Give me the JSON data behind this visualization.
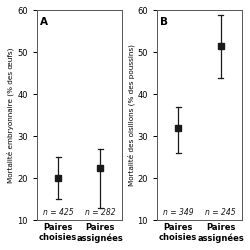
{
  "panel_A": {
    "label": "A",
    "ylabel": "Mortalité embryonnaire (% des œufs)",
    "ylim": [
      10,
      60
    ],
    "yticks": [
      10,
      20,
      30,
      40,
      50,
      60
    ],
    "groups": [
      "Paires\nchoisies",
      "Paires\nassignées"
    ],
    "means": [
      20,
      22.5
    ],
    "ci_low": [
      15,
      13
    ],
    "ci_high": [
      25,
      27
    ],
    "n_labels": [
      "n = 425",
      "n = 282"
    ],
    "x_positions": [
      1,
      2
    ]
  },
  "panel_B": {
    "label": "B",
    "ylabel": "Mortalité des oisillons (% des poussins)",
    "ylim": [
      10,
      60
    ],
    "yticks": [
      10,
      20,
      30,
      40,
      50,
      60
    ],
    "groups": [
      "Paires\nchoisies",
      "Paires\nassignées"
    ],
    "means": [
      32,
      51.5
    ],
    "ci_low": [
      26,
      44
    ],
    "ci_high": [
      37,
      59
    ],
    "n_labels": [
      "n = 349",
      "n = 245"
    ],
    "x_positions": [
      1,
      2
    ]
  },
  "dot_color": "#1a1a1a",
  "line_color": "#1a1a1a",
  "bg_color": "#ffffff",
  "font_size_ylabel": 5.2,
  "font_size_tick": 6.0,
  "font_size_n": 5.5,
  "font_size_panel": 7.5,
  "marker_size": 4.5,
  "cap_size": 0.06
}
